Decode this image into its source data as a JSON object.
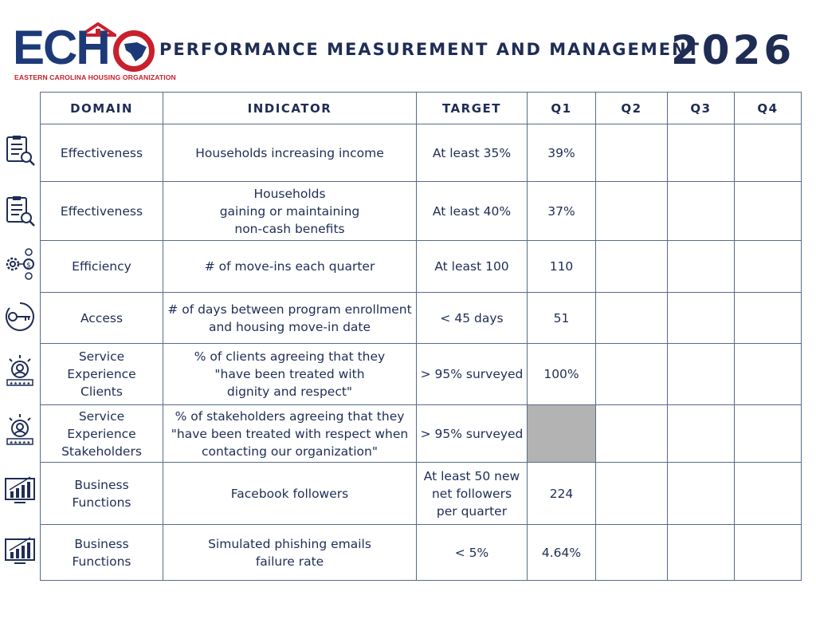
{
  "logo": {
    "wordmark": "ECHO",
    "tagline": "EASTERN CAROLINA HOUSING ORGANIZATION"
  },
  "header": {
    "title": "PERFORMANCE MEASUREMENT AND MANAGEMENT",
    "year": "2026"
  },
  "table": {
    "columns": [
      "DOMAIN",
      "INDICATOR",
      "TARGET",
      "Q1",
      "Q2",
      "Q3",
      "Q4"
    ],
    "rows": [
      {
        "icon": "checklist-magnifier-icon",
        "domain": "Effectiveness",
        "indicator": "Households increasing income",
        "target": "At least 35%",
        "q1": "39%",
        "q2": "",
        "q3": "",
        "q4": ""
      },
      {
        "icon": "checklist-magnifier-icon",
        "domain": "Effectiveness",
        "indicator": "Households\ngaining or maintaining\nnon-cash benefits",
        "target": "At least 40%",
        "q1": "37%",
        "q2": "",
        "q3": "",
        "q4": ""
      },
      {
        "icon": "gears-dollar-icon",
        "domain": "Efficiency",
        "indicator": "# of move-ins each quarter",
        "target": "At least 100",
        "q1": "110",
        "q2": "",
        "q3": "",
        "q4": ""
      },
      {
        "icon": "key-icon",
        "domain": "Access",
        "indicator": "# of days between program enrollment\nand housing move-in date",
        "target": "< 45 days",
        "q1": "51",
        "q2": "",
        "q3": "",
        "q4": ""
      },
      {
        "icon": "person-rating-icon",
        "domain": "Service Experience\nClients",
        "indicator": "% of clients agreeing that they\n\"have been treated with\ndignity and respect\"",
        "target": "> 95% surveyed",
        "q1": "100%",
        "q2": "",
        "q3": "",
        "q4": ""
      },
      {
        "icon": "person-rating-icon",
        "domain": "Service Experience\nStakeholders",
        "indicator": "% of stakeholders agreeing that they\n\"have been treated with respect when\ncontacting our organization\"",
        "target": "> 95% surveyed",
        "q1": "",
        "q2": "",
        "q3": "",
        "q4": ""
      },
      {
        "icon": "growth-chart-monitor-icon",
        "domain": "Business Functions",
        "indicator": "Facebook followers",
        "target": "At least 50 new\nnet followers\nper quarter",
        "q1": "224",
        "q2": "",
        "q3": "",
        "q4": ""
      },
      {
        "icon": "growth-chart-monitor-icon",
        "domain": "Business Functions",
        "indicator": "Simulated phishing emails\nfailure rate",
        "target": "< 5%",
        "q1": "4.64%",
        "q2": "",
        "q3": "",
        "q4": ""
      }
    ]
  },
  "colors": {
    "navy": "#1f2d55",
    "logo_blue": "#1d3a78",
    "logo_red": "#c8202d",
    "grey_cell": "#b3b3b3"
  }
}
